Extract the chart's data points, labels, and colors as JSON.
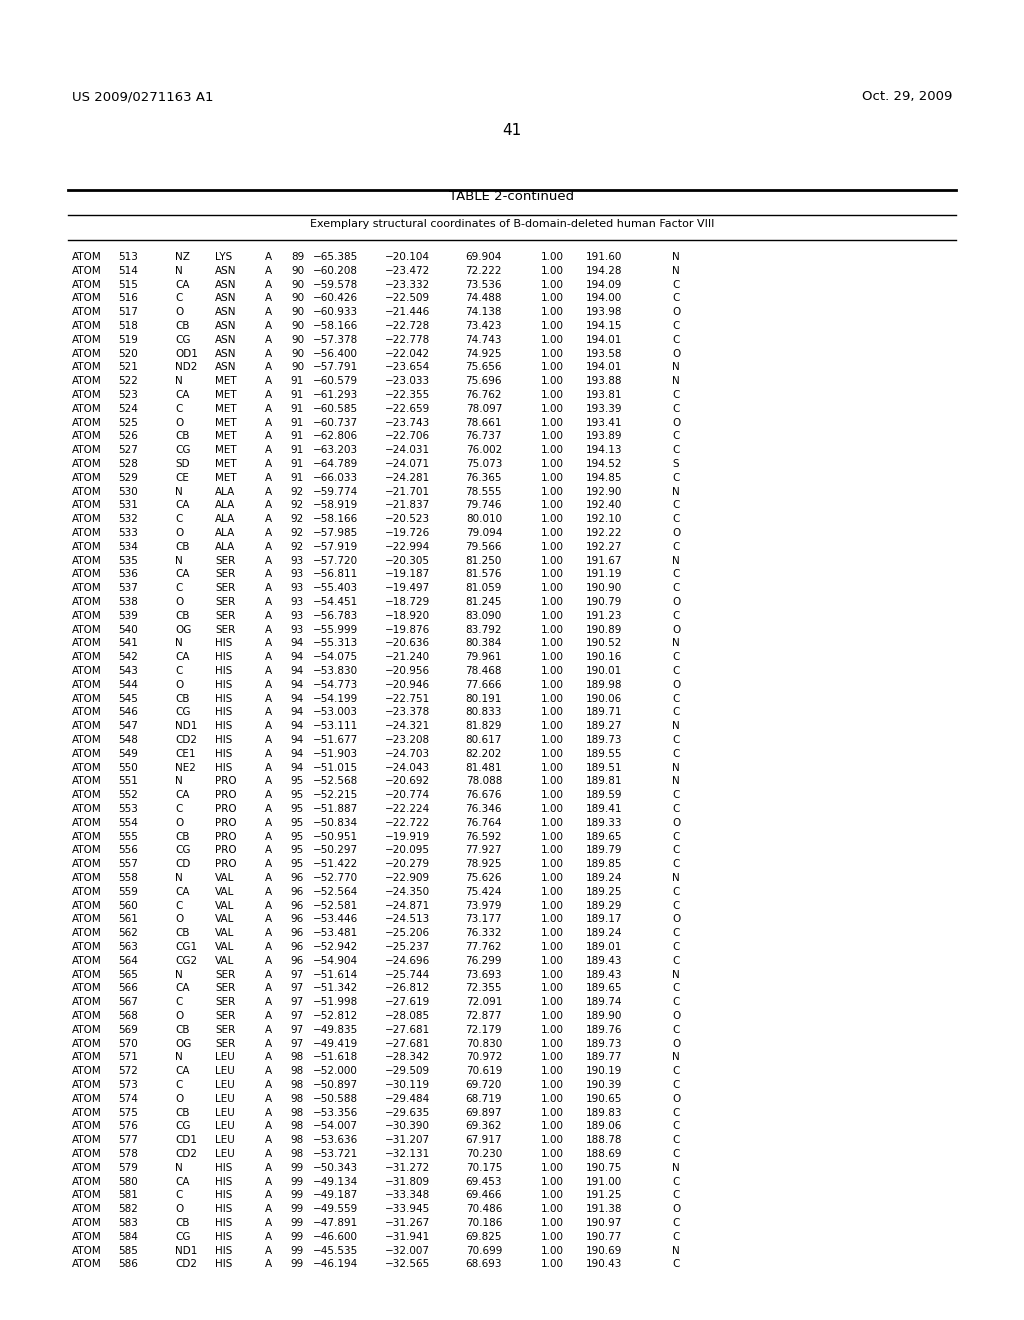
{
  "patent_left": "US 2009/0271163 A1",
  "patent_right": "Oct. 29, 2009",
  "page_number": "41",
  "table_title": "TABLE 2-continued",
  "table_subtitle": "Exemplary structural coordinates of B-domain-deleted human Factor VIII",
  "rows": [
    [
      "ATOM",
      "513",
      "NZ",
      "LYS",
      "A",
      "89",
      "−65.385",
      "−20.104",
      "69.904",
      "1.00",
      "191.60",
      "N"
    ],
    [
      "ATOM",
      "514",
      "N",
      "ASN",
      "A",
      "90",
      "−60.208",
      "−23.472",
      "72.222",
      "1.00",
      "194.28",
      "N"
    ],
    [
      "ATOM",
      "515",
      "CA",
      "ASN",
      "A",
      "90",
      "−59.578",
      "−23.332",
      "73.536",
      "1.00",
      "194.09",
      "C"
    ],
    [
      "ATOM",
      "516",
      "C",
      "ASN",
      "A",
      "90",
      "−60.426",
      "−22.509",
      "74.488",
      "1.00",
      "194.00",
      "C"
    ],
    [
      "ATOM",
      "517",
      "O",
      "ASN",
      "A",
      "90",
      "−60.933",
      "−21.446",
      "74.138",
      "1.00",
      "193.98",
      "O"
    ],
    [
      "ATOM",
      "518",
      "CB",
      "ASN",
      "A",
      "90",
      "−58.166",
      "−22.728",
      "73.423",
      "1.00",
      "194.15",
      "C"
    ],
    [
      "ATOM",
      "519",
      "CG",
      "ASN",
      "A",
      "90",
      "−57.378",
      "−22.778",
      "74.743",
      "1.00",
      "194.01",
      "C"
    ],
    [
      "ATOM",
      "520",
      "OD1",
      "ASN",
      "A",
      "90",
      "−56.400",
      "−22.042",
      "74.925",
      "1.00",
      "193.58",
      "O"
    ],
    [
      "ATOM",
      "521",
      "ND2",
      "ASN",
      "A",
      "90",
      "−57.791",
      "−23.654",
      "75.656",
      "1.00",
      "194.01",
      "N"
    ],
    [
      "ATOM",
      "522",
      "N",
      "MET",
      "A",
      "91",
      "−60.579",
      "−23.033",
      "75.696",
      "1.00",
      "193.88",
      "N"
    ],
    [
      "ATOM",
      "523",
      "CA",
      "MET",
      "A",
      "91",
      "−61.293",
      "−22.355",
      "76.762",
      "1.00",
      "193.81",
      "C"
    ],
    [
      "ATOM",
      "524",
      "C",
      "MET",
      "A",
      "91",
      "−60.585",
      "−22.659",
      "78.097",
      "1.00",
      "193.39",
      "C"
    ],
    [
      "ATOM",
      "525",
      "O",
      "MET",
      "A",
      "91",
      "−60.737",
      "−23.743",
      "78.661",
      "1.00",
      "193.41",
      "O"
    ],
    [
      "ATOM",
      "526",
      "CB",
      "MET",
      "A",
      "91",
      "−62.806",
      "−22.706",
      "76.737",
      "1.00",
      "193.89",
      "C"
    ],
    [
      "ATOM",
      "527",
      "CG",
      "MET",
      "A",
      "91",
      "−63.203",
      "−24.031",
      "76.002",
      "1.00",
      "194.13",
      "C"
    ],
    [
      "ATOM",
      "528",
      "SD",
      "MET",
      "A",
      "91",
      "−64.789",
      "−24.071",
      "75.073",
      "1.00",
      "194.52",
      "S"
    ],
    [
      "ATOM",
      "529",
      "CE",
      "MET",
      "A",
      "91",
      "−66.033",
      "−24.281",
      "76.365",
      "1.00",
      "194.85",
      "C"
    ],
    [
      "ATOM",
      "530",
      "N",
      "ALA",
      "A",
      "92",
      "−59.774",
      "−21.701",
      "78.555",
      "1.00",
      "192.90",
      "N"
    ],
    [
      "ATOM",
      "531",
      "CA",
      "ALA",
      "A",
      "92",
      "−58.919",
      "−21.837",
      "79.746",
      "1.00",
      "192.40",
      "C"
    ],
    [
      "ATOM",
      "532",
      "C",
      "ALA",
      "A",
      "92",
      "−58.166",
      "−20.523",
      "80.010",
      "1.00",
      "192.10",
      "C"
    ],
    [
      "ATOM",
      "533",
      "O",
      "ALA",
      "A",
      "92",
      "−57.985",
      "−19.726",
      "79.094",
      "1.00",
      "192.22",
      "O"
    ],
    [
      "ATOM",
      "534",
      "CB",
      "ALA",
      "A",
      "92",
      "−57.919",
      "−22.994",
      "79.566",
      "1.00",
      "192.27",
      "C"
    ],
    [
      "ATOM",
      "535",
      "N",
      "SER",
      "A",
      "93",
      "−57.720",
      "−20.305",
      "81.250",
      "1.00",
      "191.67",
      "N"
    ],
    [
      "ATOM",
      "536",
      "CA",
      "SER",
      "A",
      "93",
      "−56.811",
      "−19.187",
      "81.576",
      "1.00",
      "191.19",
      "C"
    ],
    [
      "ATOM",
      "537",
      "C",
      "SER",
      "A",
      "93",
      "−55.403",
      "−19.497",
      "81.059",
      "1.00",
      "190.90",
      "C"
    ],
    [
      "ATOM",
      "538",
      "O",
      "SER",
      "A",
      "93",
      "−54.451",
      "−18.729",
      "81.245",
      "1.00",
      "190.79",
      "O"
    ],
    [
      "ATOM",
      "539",
      "CB",
      "SER",
      "A",
      "93",
      "−56.783",
      "−18.920",
      "83.090",
      "1.00",
      "191.23",
      "C"
    ],
    [
      "ATOM",
      "540",
      "OG",
      "SER",
      "A",
      "93",
      "−55.999",
      "−19.876",
      "83.792",
      "1.00",
      "190.89",
      "O"
    ],
    [
      "ATOM",
      "541",
      "N",
      "HIS",
      "A",
      "94",
      "−55.313",
      "−20.636",
      "80.384",
      "1.00",
      "190.52",
      "N"
    ],
    [
      "ATOM",
      "542",
      "CA",
      "HIS",
      "A",
      "94",
      "−54.075",
      "−21.240",
      "79.961",
      "1.00",
      "190.16",
      "C"
    ],
    [
      "ATOM",
      "543",
      "C",
      "HIS",
      "A",
      "94",
      "−53.830",
      "−20.956",
      "78.468",
      "1.00",
      "190.01",
      "C"
    ],
    [
      "ATOM",
      "544",
      "O",
      "HIS",
      "A",
      "94",
      "−54.773",
      "−20.946",
      "77.666",
      "1.00",
      "189.98",
      "O"
    ],
    [
      "ATOM",
      "545",
      "CB",
      "HIS",
      "A",
      "94",
      "−54.199",
      "−22.751",
      "80.191",
      "1.00",
      "190.06",
      "C"
    ],
    [
      "ATOM",
      "546",
      "CG",
      "HIS",
      "A",
      "94",
      "−53.003",
      "−23.378",
      "80.833",
      "1.00",
      "189.71",
      "C"
    ],
    [
      "ATOM",
      "547",
      "ND1",
      "HIS",
      "A",
      "94",
      "−53.111",
      "−24.321",
      "81.829",
      "1.00",
      "189.27",
      "N"
    ],
    [
      "ATOM",
      "548",
      "CD2",
      "HIS",
      "A",
      "94",
      "−51.677",
      "−23.208",
      "80.617",
      "1.00",
      "189.73",
      "C"
    ],
    [
      "ATOM",
      "549",
      "CE1",
      "HIS",
      "A",
      "94",
      "−51.903",
      "−24.703",
      "82.202",
      "1.00",
      "189.55",
      "C"
    ],
    [
      "ATOM",
      "550",
      "NE2",
      "HIS",
      "A",
      "94",
      "−51.015",
      "−24.043",
      "81.481",
      "1.00",
      "189.51",
      "N"
    ],
    [
      "ATOM",
      "551",
      "N",
      "PRO",
      "A",
      "95",
      "−52.568",
      "−20.692",
      "78.088",
      "1.00",
      "189.81",
      "N"
    ],
    [
      "ATOM",
      "552",
      "CA",
      "PRO",
      "A",
      "95",
      "−52.215",
      "−20.774",
      "76.676",
      "1.00",
      "189.59",
      "C"
    ],
    [
      "ATOM",
      "553",
      "C",
      "PRO",
      "A",
      "95",
      "−51.887",
      "−22.224",
      "76.346",
      "1.00",
      "189.41",
      "C"
    ],
    [
      "ATOM",
      "554",
      "O",
      "PRO",
      "A",
      "95",
      "−50.834",
      "−22.722",
      "76.764",
      "1.00",
      "189.33",
      "O"
    ],
    [
      "ATOM",
      "555",
      "CB",
      "PRO",
      "A",
      "95",
      "−50.951",
      "−19.919",
      "76.592",
      "1.00",
      "189.65",
      "C"
    ],
    [
      "ATOM",
      "556",
      "CG",
      "PRO",
      "A",
      "95",
      "−50.297",
      "−20.095",
      "77.927",
      "1.00",
      "189.79",
      "C"
    ],
    [
      "ATOM",
      "557",
      "CD",
      "PRO",
      "A",
      "95",
      "−51.422",
      "−20.279",
      "78.925",
      "1.00",
      "189.85",
      "C"
    ],
    [
      "ATOM",
      "558",
      "N",
      "VAL",
      "A",
      "96",
      "−52.770",
      "−22.909",
      "75.626",
      "1.00",
      "189.24",
      "N"
    ],
    [
      "ATOM",
      "559",
      "CA",
      "VAL",
      "A",
      "96",
      "−52.564",
      "−24.350",
      "75.424",
      "1.00",
      "189.25",
      "C"
    ],
    [
      "ATOM",
      "560",
      "C",
      "VAL",
      "A",
      "96",
      "−52.581",
      "−24.871",
      "73.979",
      "1.00",
      "189.29",
      "C"
    ],
    [
      "ATOM",
      "561",
      "O",
      "VAL",
      "A",
      "96",
      "−53.446",
      "−24.513",
      "73.177",
      "1.00",
      "189.17",
      "O"
    ],
    [
      "ATOM",
      "562",
      "CB",
      "VAL",
      "A",
      "96",
      "−53.481",
      "−25.206",
      "76.332",
      "1.00",
      "189.24",
      "C"
    ],
    [
      "ATOM",
      "563",
      "CG1",
      "VAL",
      "A",
      "96",
      "−52.942",
      "−25.237",
      "77.762",
      "1.00",
      "189.01",
      "C"
    ],
    [
      "ATOM",
      "564",
      "CG2",
      "VAL",
      "A",
      "96",
      "−54.904",
      "−24.696",
      "76.299",
      "1.00",
      "189.43",
      "C"
    ],
    [
      "ATOM",
      "565",
      "N",
      "SER",
      "A",
      "97",
      "−51.614",
      "−25.744",
      "73.693",
      "1.00",
      "189.43",
      "N"
    ],
    [
      "ATOM",
      "566",
      "CA",
      "SER",
      "A",
      "97",
      "−51.342",
      "−26.812",
      "72.355",
      "1.00",
      "189.65",
      "C"
    ],
    [
      "ATOM",
      "567",
      "C",
      "SER",
      "A",
      "97",
      "−51.998",
      "−27.619",
      "72.091",
      "1.00",
      "189.74",
      "C"
    ],
    [
      "ATOM",
      "568",
      "O",
      "SER",
      "A",
      "97",
      "−52.812",
      "−28.085",
      "72.877",
      "1.00",
      "189.90",
      "O"
    ],
    [
      "ATOM",
      "569",
      "CB",
      "SER",
      "A",
      "97",
      "−49.835",
      "−27.681",
      "72.179",
      "1.00",
      "189.76",
      "C"
    ],
    [
      "ATOM",
      "570",
      "OG",
      "SER",
      "A",
      "97",
      "−49.419",
      "−27.681",
      "70.830",
      "1.00",
      "189.73",
      "O"
    ],
    [
      "ATOM",
      "571",
      "N",
      "LEU",
      "A",
      "98",
      "−51.618",
      "−28.342",
      "70.972",
      "1.00",
      "189.77",
      "N"
    ],
    [
      "ATOM",
      "572",
      "CA",
      "LEU",
      "A",
      "98",
      "−52.000",
      "−29.509",
      "70.619",
      "1.00",
      "190.19",
      "C"
    ],
    [
      "ATOM",
      "573",
      "C",
      "LEU",
      "A",
      "98",
      "−50.897",
      "−30.119",
      "69.720",
      "1.00",
      "190.39",
      "C"
    ],
    [
      "ATOM",
      "574",
      "O",
      "LEU",
      "A",
      "98",
      "−50.588",
      "−29.484",
      "68.719",
      "1.00",
      "190.65",
      "O"
    ],
    [
      "ATOM",
      "575",
      "CB",
      "LEU",
      "A",
      "98",
      "−53.356",
      "−29.635",
      "69.897",
      "1.00",
      "189.83",
      "C"
    ],
    [
      "ATOM",
      "576",
      "CG",
      "LEU",
      "A",
      "98",
      "−54.007",
      "−30.390",
      "69.362",
      "1.00",
      "189.06",
      "C"
    ],
    [
      "ATOM",
      "577",
      "CD1",
      "LEU",
      "A",
      "98",
      "−53.636",
      "−31.207",
      "67.917",
      "1.00",
      "188.78",
      "C"
    ],
    [
      "ATOM",
      "578",
      "CD2",
      "LEU",
      "A",
      "98",
      "−53.721",
      "−32.131",
      "70.230",
      "1.00",
      "188.69",
      "C"
    ],
    [
      "ATOM",
      "579",
      "N",
      "HIS",
      "A",
      "99",
      "−50.343",
      "−31.272",
      "70.175",
      "1.00",
      "190.75",
      "N"
    ],
    [
      "ATOM",
      "580",
      "CA",
      "HIS",
      "A",
      "99",
      "−49.134",
      "−31.809",
      "69.453",
      "1.00",
      "191.00",
      "C"
    ],
    [
      "ATOM",
      "581",
      "C",
      "HIS",
      "A",
      "99",
      "−49.187",
      "−33.348",
      "69.466",
      "1.00",
      "191.25",
      "C"
    ],
    [
      "ATOM",
      "582",
      "O",
      "HIS",
      "A",
      "99",
      "−49.559",
      "−33.945",
      "70.486",
      "1.00",
      "191.38",
      "O"
    ],
    [
      "ATOM",
      "583",
      "CB",
      "HIS",
      "A",
      "99",
      "−47.891",
      "−31.267",
      "70.186",
      "1.00",
      "190.97",
      "C"
    ],
    [
      "ATOM",
      "584",
      "CG",
      "HIS",
      "A",
      "99",
      "−46.600",
      "−31.941",
      "69.825",
      "1.00",
      "190.77",
      "C"
    ],
    [
      "ATOM",
      "585",
      "ND1",
      "HIS",
      "A",
      "99",
      "−45.535",
      "−32.007",
      "70.699",
      "1.00",
      "190.69",
      "N"
    ],
    [
      "ATOM",
      "586",
      "CD2",
      "HIS",
      "A",
      "99",
      "−46.194",
      "−32.565",
      "68.693",
      "1.00",
      "190.43",
      "C"
    ]
  ],
  "background_color": "#ffffff",
  "text_color": "#000000",
  "font_size": 7.5,
  "title_font_size": 9.5,
  "subtitle_font_size": 8.0,
  "header_font_size": 9.5,
  "page_num_font_size": 11
}
